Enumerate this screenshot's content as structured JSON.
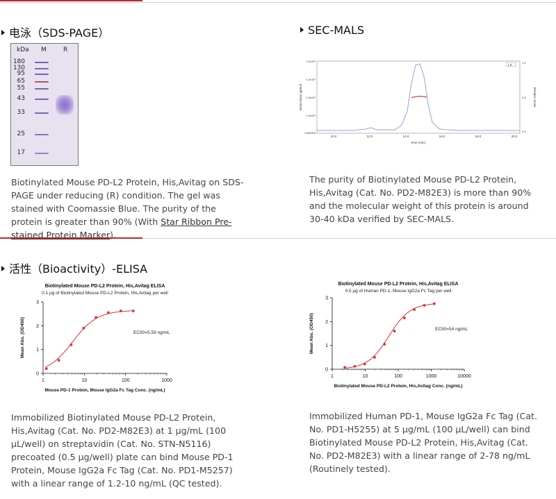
{
  "sections": {
    "sds_page": {
      "title": "电泳（SDS-PAGE）",
      "gel": {
        "header": {
          "kda": "kDa",
          "lane_m": "M",
          "lane_r": "R"
        },
        "markers": [
          "180",
          "130",
          "95",
          "65",
          "55",
          "43",
          "33",
          "25",
          "17"
        ]
      },
      "caption_parts": {
        "text": "Biotinylated Mouse PD-L2 Protein, His,Avitag on SDS-PAGE under reducing (R) condition. The gel was stained with Coomassie Blue. The purity of the protein is greater than 90% (With ",
        "link": "Star Ribbon Pre-stained Protein Marker",
        "end": ")."
      }
    },
    "sec_mals": {
      "title": "SEC-MALS",
      "plot": {
        "y_left_label": "Molar Mass (g/mol)",
        "y_right_label": "Relative Scale",
        "x_label": "time (min)",
        "x_ticks": [
          "10.0",
          "12.0",
          "14.0",
          "16.0",
          "18.0",
          "20.0"
        ],
        "y_left_ticks": [
          "1000000",
          "1.0x10⁵",
          "1.0x10⁶",
          "1.0x10⁷",
          "1.0x10⁸"
        ],
        "y_right_ticks": [
          "0.0",
          "0.5",
          "1.0"
        ],
        "legend": "LS"
      },
      "caption": "The purity of Biotinylated Mouse PD-L2 Protein, His,Avitag (Cat. No. PD2-M82E3) is more than 90% and the molecular weight of this protein is around 30-40 kDa verified by SEC-MALS."
    },
    "bioactivity": {
      "title": "活性（Bioactivity）-ELISA",
      "left_caption": "Immobilized Biotinylated Mouse PD-L2 Protein, His,Avitag (Cat. No. PD2-M82E3) at 1 μg/mL (100 μL/well) on streptavidin (Cat. No. STN-N5116) precoated (0.5 μg/well) plate can bind Mouse PD-1 Protein, Mouse IgG2a Fc Tag (Cat. No. PD1-M5257) with a linear range of 1.2-10 ng/mL (QC tested).",
      "right_caption": "Immobilized Human PD-1, Mouse IgG2a Fc Tag (Cat. No. PD1-H5255) at 5 μg/mL (100 μL/well) can bind Biotinylated Mouse PD-L2 Protein, His,Avitag (Cat. No. PD2-M82E3) with a linear range of 2-78 ng/mL (Routinely tested)."
    }
  },
  "chart_data": [
    {
      "type": "scatter",
      "title": "Biotinylated Mouse PD-L2 Protein, His,Avitag ELISA",
      "subtitle": "0.1 μg of Biotinylated Mouse PD-L2 Protein, His,Avitag per well",
      "xlabel": "Mouse PD-1 Protein, Mouse IgG2a Fc Tag Conc. (ng/mL)",
      "ylabel": "Mean Abs. (OD450)",
      "x_scale": "log",
      "xlim": [
        1,
        1000
      ],
      "ylim": [
        0,
        3
      ],
      "x_ticks": [
        "1",
        "10",
        "100",
        "1000"
      ],
      "y_ticks": [
        "0",
        "1",
        "2",
        "3"
      ],
      "annotation": "EC50=5.59 ng/mL",
      "x": [
        1.2,
        2.4,
        4.8,
        9.6,
        19.2,
        38.4,
        76.8,
        153.6
      ],
      "y": [
        0.2,
        0.55,
        1.2,
        1.9,
        2.35,
        2.55,
        2.62,
        2.62
      ],
      "fit_color": "#e03030"
    },
    {
      "type": "scatter",
      "title": "Biotinylated Mouse PD-L2 Protein, His,Avitag ELISA",
      "subtitle": "0.5 μg of Human PD-1, Mouse IgG2a Fc Tag per well",
      "xlabel": "Biotinylated Mouse PD-L2 Protein, His,Avitag Conc. (ng/mL)",
      "ylabel": "Mean Abs. (OD450)",
      "x_scale": "log",
      "xlim": [
        1,
        10000
      ],
      "ylim": [
        0,
        3
      ],
      "x_ticks": [
        "1",
        "10",
        "100",
        "1000",
        "10000"
      ],
      "y_ticks": [
        "0",
        "1",
        "2",
        "3"
      ],
      "annotation": "EC50=54 ng/mL",
      "x": [
        2.4,
        4.8,
        9.6,
        19.2,
        38.4,
        76.8,
        153.6,
        307,
        614,
        1228
      ],
      "y": [
        0.08,
        0.12,
        0.22,
        0.5,
        1.05,
        1.6,
        2.15,
        2.5,
        2.68,
        2.75
      ],
      "fit_color": "#e03030"
    }
  ]
}
